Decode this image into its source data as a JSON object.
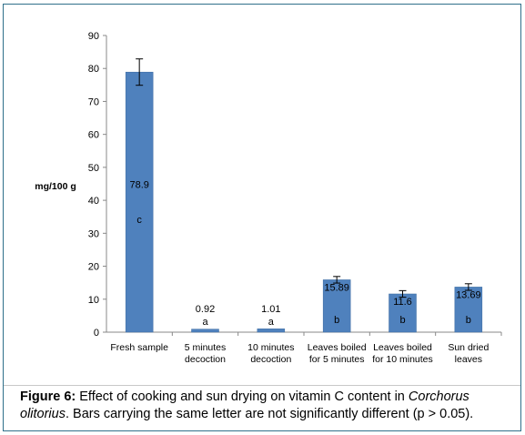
{
  "chart_data": {
    "type": "bar",
    "ylabel": "mg/100 g",
    "ylim": [
      0,
      90
    ],
    "yticks": [
      0,
      10,
      20,
      30,
      40,
      50,
      60,
      70,
      80,
      90
    ],
    "grid": false,
    "categories": [
      [
        "Fresh sample"
      ],
      [
        "5 minutes",
        "decoction"
      ],
      [
        "10 minutes",
        "decoction"
      ],
      [
        "Leaves boiled",
        "for 5 minutes"
      ],
      [
        "Leaves boiled",
        "for 10 minutes"
      ],
      [
        "Sun dried",
        "leaves"
      ]
    ],
    "values": [
      78.9,
      0.92,
      1.01,
      15.89,
      11.6,
      13.69
    ],
    "value_labels": [
      "78.9",
      "0.92",
      "1.01",
      "15.89",
      "11.6",
      "13.69"
    ],
    "errors": [
      4.0,
      0.2,
      0.2,
      1.0,
      1.0,
      1.0
    ],
    "letters": [
      "c",
      "a",
      "a",
      "b",
      "b",
      "b"
    ],
    "bar_color": "#4f81bd"
  },
  "caption": {
    "figure_label": "Figure 6:",
    "text_1": " Effect of cooking and sun drying on vitamin C content in ",
    "species": "Corchorus olitorius",
    "text_2": ". Bars carrying the same letter are not significantly different (p > 0.05)."
  }
}
